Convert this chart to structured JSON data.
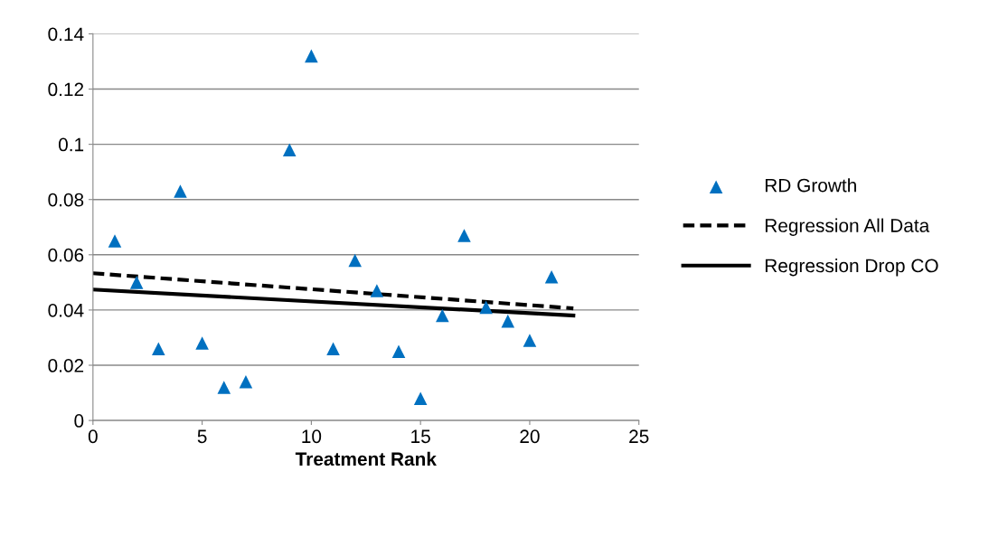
{
  "chart_data": {
    "type": "scatter",
    "xlabel": "Treatment Rank",
    "xlim": [
      0,
      25
    ],
    "xticks": [
      0,
      5,
      10,
      15,
      20,
      25
    ],
    "ylim": [
      0,
      0.14
    ],
    "yticks": [
      0,
      0.02,
      0.04,
      0.06,
      0.08,
      0.1,
      0.12,
      0.14
    ],
    "grid": "y",
    "legend": "right",
    "series": [
      {
        "name": "RD Growth",
        "type": "scatter",
        "marker": "triangle",
        "color": "#0070c0",
        "x": [
          1,
          2,
          3,
          4,
          5,
          6,
          7,
          9,
          10,
          11,
          12,
          13,
          14,
          15,
          16,
          17,
          18,
          19,
          20,
          21
        ],
        "values": [
          0.065,
          0.05,
          0.026,
          0.083,
          0.028,
          0.012,
          0.014,
          0.098,
          0.132,
          0.026,
          0.058,
          0.047,
          0.025,
          0.008,
          0.038,
          0.067,
          0.041,
          0.036,
          0.029,
          0.052
        ]
      },
      {
        "name": "Regression All Data",
        "type": "line",
        "line_style": "dashed",
        "color": "#000000",
        "x": [
          0,
          22
        ],
        "values": [
          0.0533,
          0.0406
        ]
      },
      {
        "name": "Regression Drop CO",
        "type": "line",
        "line_style": "solid",
        "color": "#000000",
        "x": [
          0,
          22
        ],
        "values": [
          0.0474,
          0.038
        ]
      }
    ]
  }
}
